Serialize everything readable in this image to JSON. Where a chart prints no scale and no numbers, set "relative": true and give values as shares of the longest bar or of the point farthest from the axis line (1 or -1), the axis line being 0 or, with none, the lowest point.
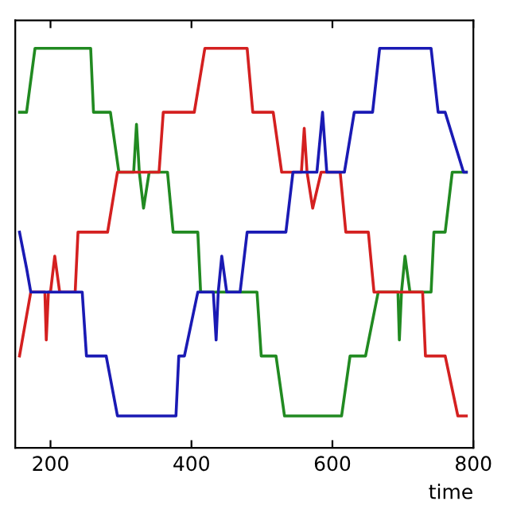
{
  "chart_data": {
    "type": "line",
    "relative": true,
    "xlabel": "time",
    "xlim": [
      150,
      800
    ],
    "xticks": [
      200,
      400,
      600,
      800
    ],
    "grid": false,
    "marker": "none",
    "line_style": "solid",
    "series": [
      {
        "color": "#218a21",
        "x": [
          156,
          166,
          178,
          257,
          261,
          285,
          297,
          318,
          322,
          326,
          332,
          340,
          366,
          374,
          409,
          413,
          493,
          499,
          520,
          532,
          613,
          625,
          647,
          665,
          693,
          695,
          698,
          703,
          710,
          740,
          744,
          760,
          770,
          790
        ],
        "values": [
          0.84,
          0.84,
          1,
          1,
          0.84,
          0.84,
          0.69,
          0.69,
          0.81,
          0.69,
          0.6,
          0.69,
          0.69,
          0.54,
          0.54,
          0.39,
          0.39,
          0.23,
          0.23,
          0.08,
          0.08,
          0.23,
          0.23,
          0.39,
          0.39,
          0.27,
          0.39,
          0.48,
          0.39,
          0.39,
          0.54,
          0.54,
          0.69,
          0.69
        ]
      },
      {
        "color": "#d42020",
        "x": [
          156,
          172,
          192,
          194,
          197,
          200,
          206,
          213,
          235,
          239,
          281,
          295,
          354,
          360,
          404,
          419,
          479,
          487,
          516,
          528,
          556,
          560,
          564,
          572,
          584,
          611,
          619,
          651,
          659,
          728,
          732,
          760,
          778,
          790
        ],
        "values": [
          0.23,
          0.39,
          0.39,
          0.27,
          0.39,
          0.39,
          0.48,
          0.39,
          0.39,
          0.54,
          0.54,
          0.69,
          0.69,
          0.84,
          0.84,
          1,
          1,
          0.84,
          0.84,
          0.69,
          0.69,
          0.8,
          0.69,
          0.6,
          0.69,
          0.69,
          0.54,
          0.54,
          0.39,
          0.39,
          0.23,
          0.23,
          0.08,
          0.08
        ]
      },
      {
        "color": "#1a1ab4",
        "x": [
          156,
          166,
          172,
          245,
          251,
          279,
          295,
          378,
          382,
          390,
          409,
          431,
          435,
          438,
          443,
          450,
          469,
          479,
          534,
          544,
          578,
          586,
          592,
          617,
          631,
          657,
          667,
          740,
          750,
          760,
          786,
          790
        ],
        "values": [
          0.54,
          0.45,
          0.39,
          0.39,
          0.23,
          0.23,
          0.08,
          0.08,
          0.23,
          0.23,
          0.39,
          0.39,
          0.27,
          0.39,
          0.48,
          0.39,
          0.39,
          0.54,
          0.54,
          0.69,
          0.69,
          0.84,
          0.69,
          0.69,
          0.84,
          0.84,
          1,
          1,
          0.84,
          0.84,
          0.69,
          0.69
        ]
      }
    ]
  }
}
